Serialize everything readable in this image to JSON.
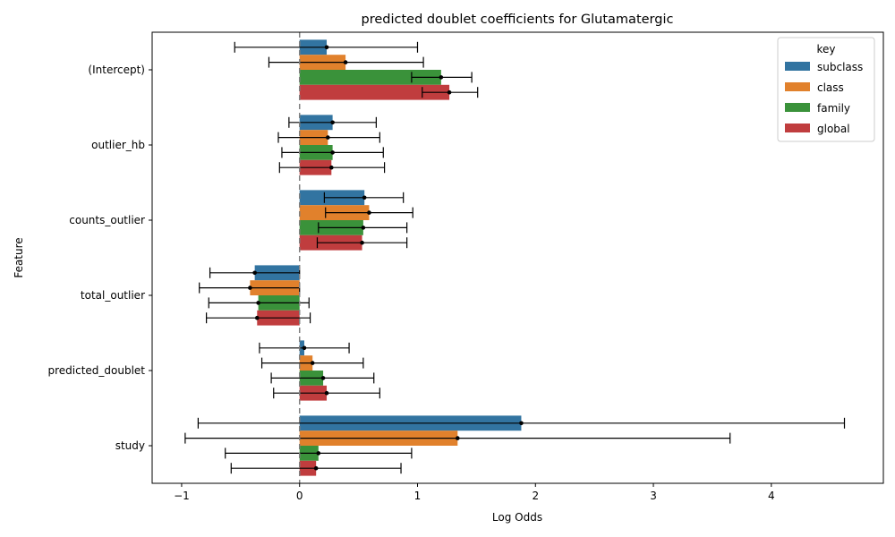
{
  "chart_data": {
    "type": "bar",
    "orientation": "horizontal",
    "title": "predicted doublet coefficients for Glutamatergic",
    "xlabel": "Log Odds",
    "ylabel": "Feature",
    "xlim": [
      -1.25,
      4.95
    ],
    "xticks": [
      -1,
      0,
      1,
      2,
      3,
      4
    ],
    "xtick_labels": [
      "−1",
      "0",
      "1",
      "2",
      "3",
      "4"
    ],
    "reference_line_x": 0,
    "categories": [
      "(Intercept)",
      "outlier_hb",
      "counts_outlier",
      "total_outlier",
      "predicted_doublet",
      "study"
    ],
    "legend_title": "key",
    "legend_position": "top-right",
    "series": [
      {
        "name": "subclass",
        "color": "#3274a1",
        "values": [
          0.23,
          0.28,
          0.55,
          -0.38,
          0.04,
          1.88
        ],
        "err_low": [
          -0.55,
          -0.09,
          0.21,
          -0.76,
          -0.34,
          -0.86
        ],
        "err_high": [
          1.0,
          0.65,
          0.88,
          0.0,
          0.42,
          4.62
        ]
      },
      {
        "name": "class",
        "color": "#e1812c",
        "values": [
          0.39,
          0.24,
          0.59,
          -0.42,
          0.11,
          1.34
        ],
        "err_low": [
          -0.26,
          -0.18,
          0.22,
          -0.85,
          -0.32,
          -0.97
        ],
        "err_high": [
          1.05,
          0.68,
          0.96,
          0.0,
          0.54,
          3.65
        ]
      },
      {
        "name": "family",
        "color": "#3a923a",
        "values": [
          1.2,
          0.28,
          0.54,
          -0.35,
          0.2,
          0.16
        ],
        "err_low": [
          0.95,
          -0.15,
          0.16,
          -0.77,
          -0.24,
          -0.63
        ],
        "err_high": [
          1.46,
          0.71,
          0.91,
          0.08,
          0.63,
          0.95
        ]
      },
      {
        "name": "global",
        "color": "#c03d3e",
        "values": [
          1.27,
          0.27,
          0.53,
          -0.36,
          0.23,
          0.14
        ],
        "err_low": [
          1.04,
          -0.17,
          0.15,
          -0.79,
          -0.22,
          -0.58
        ],
        "err_high": [
          1.51,
          0.72,
          0.91,
          0.09,
          0.68,
          0.86
        ]
      }
    ]
  }
}
